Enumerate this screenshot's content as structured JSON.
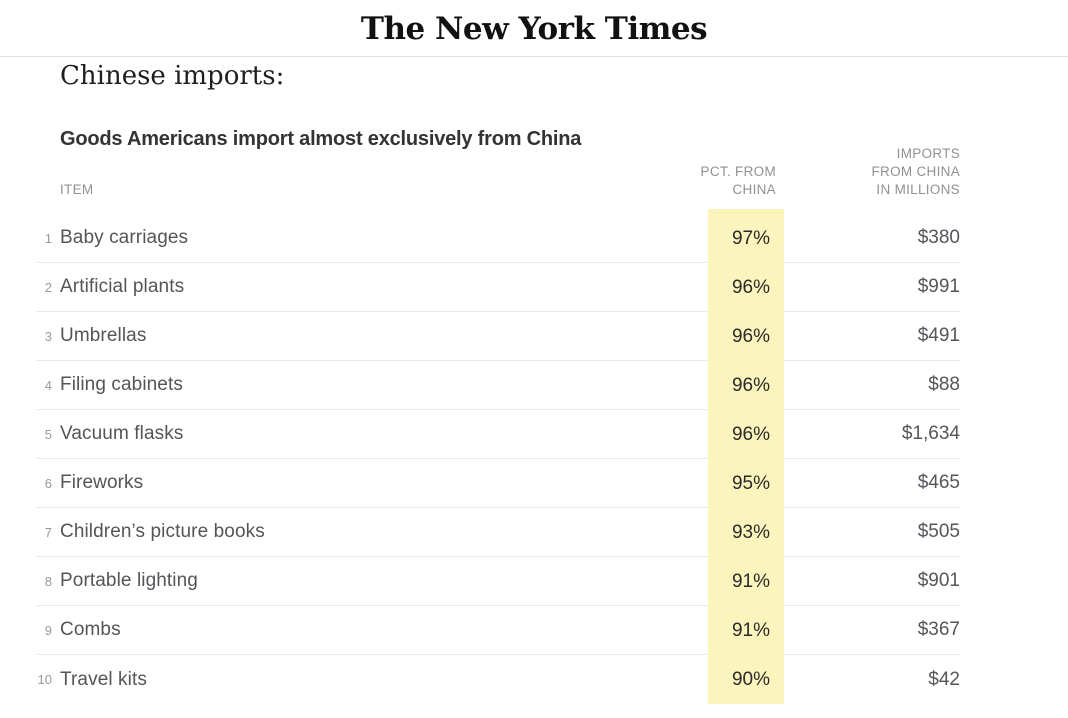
{
  "masthead": {
    "logo_text": "The New York Times"
  },
  "article": {
    "heading": "Chinese imports:"
  },
  "table": {
    "title": "Goods Americans import almost exclusively from China",
    "headers": {
      "item": "ITEM",
      "pct_line1": "PCT. FROM",
      "pct_line2": "CHINA",
      "imports_line1": "IMPORTS",
      "imports_line2": "FROM CHINA",
      "imports_line3": "IN MILLIONS"
    },
    "rows": [
      {
        "rank": "1",
        "item": "Baby carriages",
        "pct": "97%",
        "imports": "$380"
      },
      {
        "rank": "2",
        "item": "Artificial plants",
        "pct": "96%",
        "imports": "$991"
      },
      {
        "rank": "3",
        "item": "Umbrellas",
        "pct": "96%",
        "imports": "$491"
      },
      {
        "rank": "4",
        "item": "Filing cabinets",
        "pct": "96%",
        "imports": "$88"
      },
      {
        "rank": "5",
        "item": "Vacuum flasks",
        "pct": "96%",
        "imports": "$1,634"
      },
      {
        "rank": "6",
        "item": "Fireworks",
        "pct": "95%",
        "imports": "$465"
      },
      {
        "rank": "7",
        "item": "Children’s picture books",
        "pct": "93%",
        "imports": "$505"
      },
      {
        "rank": "8",
        "item": "Portable lighting",
        "pct": "91%",
        "imports": "$901"
      },
      {
        "rank": "9",
        "item": "Combs",
        "pct": "91%",
        "imports": "$367"
      },
      {
        "rank": "10",
        "item": "Travel kits",
        "pct": "90%",
        "imports": "$42"
      }
    ]
  },
  "chart_data": {
    "type": "table",
    "title": "Goods Americans import almost exclusively from China",
    "columns": [
      "ITEM",
      "PCT. FROM CHINA",
      "IMPORTS FROM CHINA IN MILLIONS"
    ],
    "categories": [
      "Baby carriages",
      "Artificial plants",
      "Umbrellas",
      "Filing cabinets",
      "Vacuum flasks",
      "Fireworks",
      "Children’s picture books",
      "Portable lighting",
      "Combs",
      "Travel kits"
    ],
    "series": [
      {
        "name": "Pct. from China (%)",
        "values": [
          97,
          96,
          96,
          96,
          96,
          95,
          93,
          91,
          91,
          90
        ]
      },
      {
        "name": "Imports from China in millions ($)",
        "values": [
          380,
          991,
          491,
          88,
          1634,
          465,
          505,
          901,
          367,
          42
        ]
      }
    ],
    "layout_hints": {
      "highlight_column": "PCT. FROM CHINA",
      "highlight_color": "#fbf4bc",
      "row_rank_visible": true
    }
  },
  "colors": {
    "highlight": "#fbf4bc",
    "row_border": "#e9e9e9",
    "masthead_border": "#e2e2e2",
    "header_text": "#919191",
    "item_text": "#555559",
    "pct_text": "#2a2a2a"
  }
}
